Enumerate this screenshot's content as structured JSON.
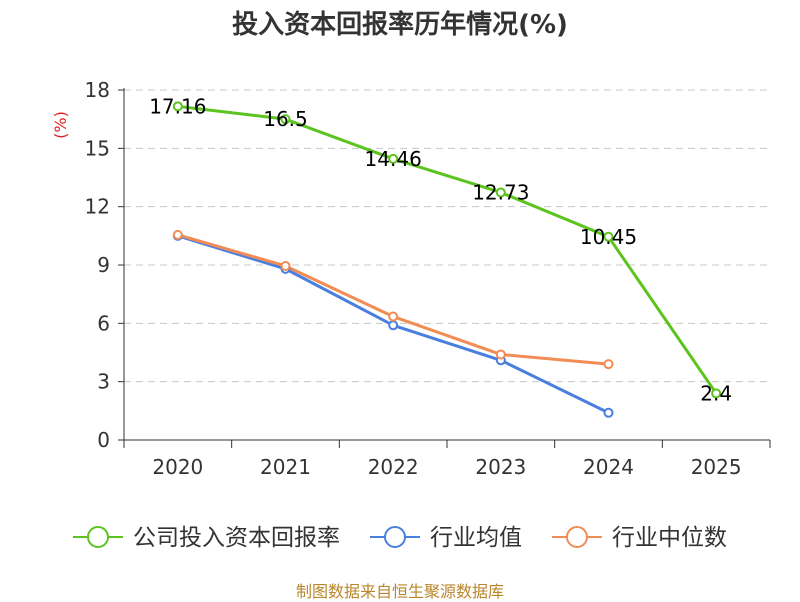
{
  "chart_data": {
    "type": "line",
    "title": "投入资本回报率历年情况(%)",
    "ylabel": "(%)",
    "xlabel": "",
    "ylim": [
      0,
      18
    ],
    "yticks": [
      0,
      3,
      6,
      9,
      12,
      15,
      18
    ],
    "categories": [
      "2020",
      "2021",
      "2022",
      "2023",
      "2024",
      "2025"
    ],
    "grid": true,
    "legend_position": "bottom",
    "series": [
      {
        "name": "公司投入资本回报率",
        "color": "#5cc41f",
        "values": [
          17.16,
          16.5,
          14.46,
          12.73,
          10.45,
          2.4
        ],
        "labels": [
          "17.16",
          "16.5",
          "14.46",
          "12.73",
          "10.45",
          "2.4"
        ]
      },
      {
        "name": "行业均值",
        "color": "#4a7fe0",
        "values": [
          10.5,
          8.8,
          5.9,
          4.1,
          1.4,
          null
        ]
      },
      {
        "name": "行业中位数",
        "color": "#f28c55",
        "values": [
          10.55,
          8.95,
          6.35,
          4.4,
          3.9,
          null
        ]
      }
    ]
  },
  "footer": {
    "source": "制图数据来自恒生聚源数据库"
  }
}
